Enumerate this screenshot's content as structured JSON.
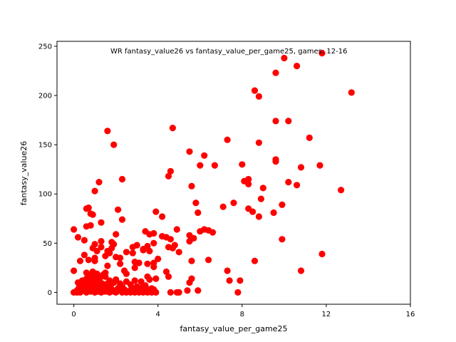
{
  "chart_data": {
    "type": "scatter",
    "title": "WR  fantasy_value26 vs fantasy_value_per_game25, games: 12-16",
    "xlabel": "fantasy_value_per_game25",
    "ylabel": "fantasy_value26",
    "xlim": [
      -0.8,
      16
    ],
    "ylim": [
      -12,
      255
    ],
    "x_ticks": [
      0,
      4,
      8,
      12,
      16
    ],
    "y_ticks": [
      0,
      50,
      100,
      150,
      200,
      250
    ],
    "grid": false,
    "marker_color": "#ff0000",
    "points": [
      [
        11.8,
        243
      ],
      [
        10.0,
        238
      ],
      [
        10.6,
        230
      ],
      [
        9.6,
        223
      ],
      [
        8.6,
        205
      ],
      [
        8.8,
        199
      ],
      [
        13.2,
        203
      ],
      [
        9.6,
        174
      ],
      [
        10.2,
        174
      ],
      [
        4.7,
        167
      ],
      [
        1.6,
        164
      ],
      [
        11.2,
        157
      ],
      [
        7.3,
        155
      ],
      [
        8.8,
        152
      ],
      [
        1.9,
        150
      ],
      [
        5.5,
        143
      ],
      [
        6.2,
        139
      ],
      [
        9.6,
        135
      ],
      [
        9.6,
        133
      ],
      [
        6.0,
        129
      ],
      [
        6.7,
        129
      ],
      [
        8.0,
        130
      ],
      [
        11.7,
        129
      ],
      [
        10.8,
        127
      ],
      [
        4.6,
        123
      ],
      [
        4.5,
        118
      ],
      [
        8.3,
        115
      ],
      [
        8.1,
        113
      ],
      [
        8.3,
        110
      ],
      [
        2.3,
        115
      ],
      [
        1.2,
        112
      ],
      [
        10.2,
        112
      ],
      [
        10.6,
        109
      ],
      [
        5.6,
        108
      ],
      [
        9.0,
        106
      ],
      [
        12.7,
        104
      ],
      [
        1.0,
        103
      ],
      [
        8.9,
        95
      ],
      [
        5.8,
        91
      ],
      [
        7.6,
        91
      ],
      [
        9.9,
        89
      ],
      [
        7.1,
        87
      ],
      [
        8.3,
        85
      ],
      [
        0.6,
        85
      ],
      [
        0.7,
        86
      ],
      [
        8.5,
        82
      ],
      [
        9.5,
        81
      ],
      [
        5.9,
        81
      ],
      [
        3.9,
        82
      ],
      [
        2.1,
        84
      ],
      [
        0.8,
        80
      ],
      [
        0.9,
        79
      ],
      [
        4.2,
        77
      ],
      [
        8.8,
        77
      ],
      [
        2.3,
        74
      ],
      [
        1.3,
        71
      ],
      [
        0.6,
        67
      ],
      [
        0.8,
        68
      ],
      [
        0.0,
        64
      ],
      [
        6.0,
        62
      ],
      [
        6.2,
        64
      ],
      [
        6.4,
        63
      ],
      [
        6.6,
        61
      ],
      [
        4.9,
        64
      ],
      [
        3.4,
        62
      ],
      [
        3.6,
        59
      ],
      [
        3.8,
        60
      ],
      [
        2.0,
        59
      ],
      [
        5.5,
        58
      ],
      [
        4.2,
        57
      ],
      [
        4.4,
        56
      ],
      [
        0.2,
        56
      ],
      [
        0.5,
        53
      ],
      [
        4.6,
        54
      ],
      [
        5.7,
        55
      ],
      [
        5.5,
        52
      ],
      [
        9.9,
        54
      ],
      [
        1.3,
        52
      ],
      [
        1.8,
        51
      ],
      [
        1.9,
        49
      ],
      [
        3.8,
        50
      ],
      [
        1.0,
        49
      ],
      [
        1.3,
        46
      ],
      [
        1.8,
        45
      ],
      [
        2.8,
        46
      ],
      [
        3.0,
        48
      ],
      [
        3.3,
        44
      ],
      [
        3.5,
        47
      ],
      [
        4.5,
        46
      ],
      [
        4.8,
        48
      ],
      [
        4.7,
        45
      ],
      [
        0.9,
        45
      ],
      [
        1.1,
        42
      ],
      [
        1.6,
        42
      ],
      [
        1.7,
        40
      ],
      [
        2.5,
        41
      ],
      [
        2.8,
        40
      ],
      [
        3.3,
        43
      ],
      [
        3.6,
        42
      ],
      [
        5.0,
        41
      ],
      [
        0.5,
        38
      ],
      [
        1.5,
        37
      ],
      [
        2.0,
        36
      ],
      [
        2.2,
        35
      ],
      [
        1.0,
        35
      ],
      [
        1.0,
        32
      ],
      [
        0.7,
        33
      ],
      [
        0.3,
        32
      ],
      [
        4.0,
        34
      ],
      [
        6.4,
        33
      ],
      [
        5.6,
        32
      ],
      [
        8.6,
        32
      ],
      [
        3.8,
        30
      ],
      [
        3.5,
        29
      ],
      [
        3.1,
        30
      ],
      [
        2.9,
        31
      ],
      [
        2.2,
        29
      ],
      [
        1.6,
        27
      ],
      [
        2.9,
        25
      ],
      [
        3.8,
        26
      ],
      [
        0.0,
        22
      ],
      [
        2.4,
        22
      ],
      [
        2.5,
        19
      ],
      [
        1.5,
        20
      ],
      [
        1.4,
        18
      ],
      [
        0.6,
        20
      ],
      [
        0.9,
        21
      ],
      [
        1.1,
        19
      ],
      [
        4.4,
        21
      ],
      [
        4.5,
        16
      ],
      [
        3.5,
        16
      ],
      [
        3.6,
        13
      ],
      [
        3.9,
        14
      ],
      [
        3.2,
        11
      ],
      [
        2.9,
        12
      ],
      [
        2.5,
        11
      ],
      [
        2.2,
        9
      ],
      [
        1.9,
        10
      ],
      [
        1.6,
        9
      ],
      [
        1.3,
        8
      ],
      [
        1.1,
        10
      ],
      [
        0.9,
        7
      ],
      [
        0.5,
        11
      ],
      [
        0.3,
        8
      ],
      [
        0.2,
        10
      ],
      [
        7.3,
        22
      ],
      [
        7.4,
        12
      ],
      [
        7.9,
        12
      ],
      [
        10.8,
        22
      ],
      [
        11.8,
        39
      ],
      [
        5.6,
        14
      ],
      [
        5.5,
        10
      ],
      [
        0.0,
        0
      ],
      [
        0.1,
        1
      ],
      [
        0.2,
        3
      ],
      [
        0.3,
        0
      ],
      [
        0.4,
        2
      ],
      [
        0.5,
        4
      ],
      [
        0.6,
        0
      ],
      [
        0.7,
        6
      ],
      [
        0.8,
        1
      ],
      [
        0.9,
        3
      ],
      [
        1.0,
        0
      ],
      [
        1.1,
        5
      ],
      [
        1.2,
        2
      ],
      [
        1.3,
        0
      ],
      [
        1.4,
        4
      ],
      [
        1.5,
        1
      ],
      [
        1.6,
        6
      ],
      [
        1.7,
        0
      ],
      [
        1.8,
        3
      ],
      [
        1.9,
        1
      ],
      [
        2.0,
        0
      ],
      [
        2.1,
        4
      ],
      [
        2.2,
        2
      ],
      [
        2.3,
        0
      ],
      [
        2.4,
        3
      ],
      [
        2.5,
        0
      ],
      [
        2.6,
        1
      ],
      [
        2.7,
        0
      ],
      [
        2.8,
        2
      ],
      [
        2.9,
        0
      ],
      [
        3.0,
        3
      ],
      [
        3.1,
        0
      ],
      [
        3.2,
        1
      ],
      [
        3.3,
        0
      ],
      [
        3.4,
        2
      ],
      [
        3.5,
        0
      ],
      [
        3.6,
        1
      ],
      [
        3.7,
        0
      ],
      [
        3.8,
        3
      ],
      [
        3.9,
        0
      ],
      [
        4.6,
        0
      ],
      [
        4.9,
        0
      ],
      [
        5.0,
        0
      ],
      [
        5.4,
        2
      ],
      [
        5.9,
        2
      ],
      [
        7.8,
        0
      ],
      [
        0.25,
        5
      ],
      [
        0.45,
        7
      ],
      [
        0.65,
        9
      ],
      [
        0.85,
        11
      ],
      [
        1.05,
        13
      ],
      [
        1.25,
        15
      ],
      [
        0.35,
        1
      ],
      [
        0.55,
        5
      ],
      [
        0.75,
        2
      ],
      [
        0.95,
        6
      ],
      [
        1.15,
        1
      ],
      [
        1.35,
        9
      ],
      [
        1.55,
        3
      ],
      [
        1.75,
        7
      ],
      [
        1.95,
        2
      ],
      [
        2.15,
        5
      ],
      [
        0.15,
        0
      ],
      [
        0.6,
        14
      ],
      [
        0.9,
        16
      ],
      [
        1.2,
        12
      ],
      [
        1.5,
        16
      ],
      [
        2.0,
        13
      ],
      [
        2.7,
        8
      ],
      [
        3.0,
        6
      ],
      [
        3.4,
        7
      ],
      [
        3.7,
        4
      ],
      [
        0.4,
        12
      ],
      [
        0.8,
        17
      ],
      [
        1.0,
        14
      ],
      [
        1.7,
        12
      ],
      [
        2.3,
        6
      ],
      [
        0.55,
        10
      ],
      [
        1.05,
        8
      ],
      [
        1.45,
        6
      ],
      [
        2.45,
        2
      ],
      [
        2.75,
        4
      ],
      [
        3.25,
        5
      ],
      [
        3.55,
        3
      ],
      [
        3.85,
        1
      ]
    ]
  }
}
